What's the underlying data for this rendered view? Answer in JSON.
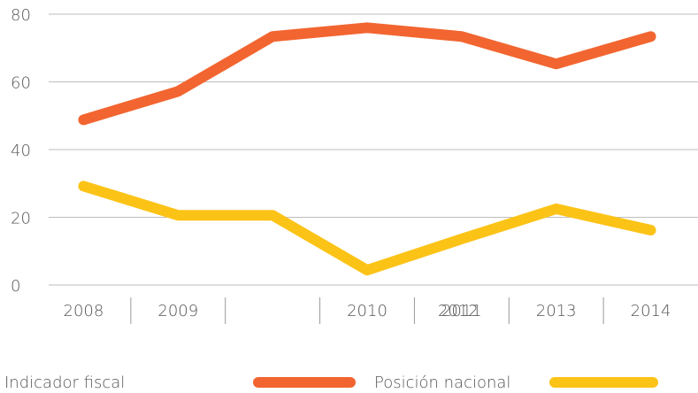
{
  "chart_data": {
    "type": "line",
    "categories": [
      "2008",
      "2009",
      null,
      "2010",
      "2011",
      "2013",
      "2014"
    ],
    "annotations": [
      {
        "text": "2012",
        "category_index": 4
      }
    ],
    "series": [
      {
        "name": "Indicador fiscal",
        "color": "#f26530",
        "values": [
          48.8,
          57.2,
          73.4,
          76,
          73.4,
          65.3,
          73.4
        ]
      },
      {
        "name": "Posición nacional",
        "color": "#fcc317",
        "values": [
          29.2,
          20.6,
          20.6,
          4.4,
          13.6,
          22.5,
          16.2
        ]
      }
    ],
    "ylim": [
      0,
      80
    ],
    "yticks": [
      0,
      20,
      40,
      60,
      80
    ],
    "grid": true,
    "legend": "bottom"
  }
}
